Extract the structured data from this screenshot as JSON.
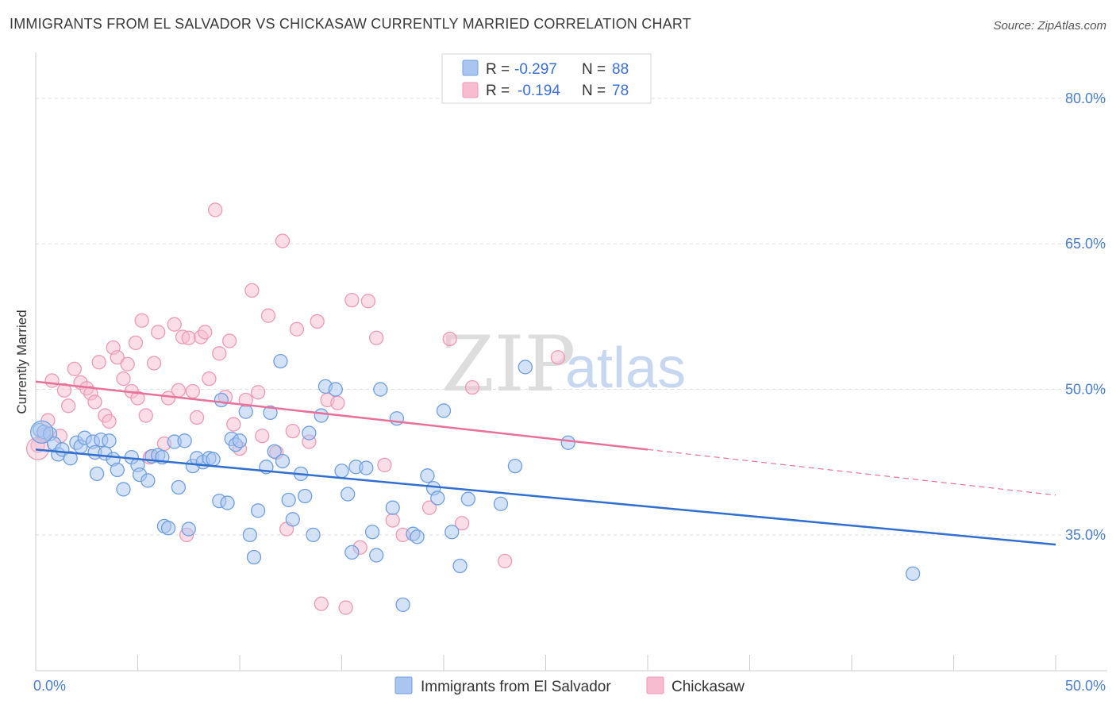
{
  "header": {
    "title": "IMMIGRANTS FROM EL SALVADOR VS CHICKASAW CURRENTLY MARRIED CORRELATION CHART",
    "source": "Source: ZipAtlas.com"
  },
  "watermark": {
    "zip": "ZIP",
    "atlas": "atlas"
  },
  "colors": {
    "blue_fill": "#a9c6f0",
    "blue_stroke": "#6f9fe0",
    "blue_line": "#2f6fd0",
    "pink_fill": "#f7bcd0",
    "pink_stroke": "#ec9ab6",
    "pink_line": "#e8709a",
    "grid": "#dddddd",
    "tick_text": "#4a7ec9"
  },
  "legend_top": {
    "rows": [
      {
        "r_label": "R =",
        "r_value": "-0.297",
        "n_label": "N =",
        "n_value": "88"
      },
      {
        "r_label": "R =",
        "r_value": "-0.194",
        "n_label": "N =",
        "n_value": "78"
      }
    ]
  },
  "legend_bottom": {
    "items": [
      "Immigrants from El Salvador",
      "Chickasaw"
    ]
  },
  "chart_data": {
    "type": "scatter",
    "xlabel": "",
    "ylabel": "Currently Married",
    "xlim": [
      0,
      50
    ],
    "ylim": [
      21,
      84
    ],
    "x_tick_labels": [
      {
        "value": 0,
        "label": "0.0%"
      },
      {
        "value": 50,
        "label": "50.0%"
      }
    ],
    "y_tick_labels": [
      {
        "value": 80,
        "label": "80.0%"
      },
      {
        "value": 65,
        "label": "65.0%"
      },
      {
        "value": 50,
        "label": "50.0%"
      },
      {
        "value": 35,
        "label": "35.0%"
      }
    ],
    "grid_y": [
      80,
      65,
      50,
      35
    ],
    "x_minor_ticks": [
      0,
      5,
      10,
      15,
      20,
      25,
      30,
      35,
      40,
      45,
      50
    ],
    "legend": "bottom-center",
    "series": [
      {
        "name": "Immigrants from El Salvador",
        "color": "blue",
        "trend": {
          "x": [
            0,
            50
          ],
          "y": [
            43.8,
            34.0
          ]
        },
        "points": [
          [
            0.2,
            45.8
          ],
          [
            0.4,
            45.6
          ],
          [
            0.7,
            45.4
          ],
          [
            0.9,
            44.4
          ],
          [
            1.1,
            43.3
          ],
          [
            1.3,
            43.8
          ],
          [
            1.7,
            42.9
          ],
          [
            2.0,
            44.5
          ],
          [
            2.2,
            44.1
          ],
          [
            2.4,
            45.0
          ],
          [
            2.8,
            44.6
          ],
          [
            2.9,
            43.5
          ],
          [
            3.0,
            41.3
          ],
          [
            3.2,
            44.8
          ],
          [
            3.4,
            43.4
          ],
          [
            3.6,
            44.7
          ],
          [
            3.8,
            42.8
          ],
          [
            4.0,
            41.7
          ],
          [
            4.3,
            39.7
          ],
          [
            4.7,
            43.0
          ],
          [
            5.0,
            42.2
          ],
          [
            5.1,
            41.2
          ],
          [
            5.5,
            40.6
          ],
          [
            5.7,
            43.1
          ],
          [
            6.0,
            43.2
          ],
          [
            6.2,
            43.0
          ],
          [
            6.3,
            35.9
          ],
          [
            6.5,
            35.7
          ],
          [
            6.8,
            44.6
          ],
          [
            7.0,
            39.9
          ],
          [
            7.3,
            44.7
          ],
          [
            7.5,
            35.6
          ],
          [
            7.7,
            42.1
          ],
          [
            7.9,
            42.9
          ],
          [
            8.2,
            42.5
          ],
          [
            8.5,
            42.9
          ],
          [
            8.7,
            42.8
          ],
          [
            9.0,
            38.5
          ],
          [
            9.1,
            48.9
          ],
          [
            9.4,
            38.3
          ],
          [
            9.6,
            44.9
          ],
          [
            9.8,
            44.3
          ],
          [
            10.0,
            44.7
          ],
          [
            10.3,
            47.7
          ],
          [
            10.5,
            35.0
          ],
          [
            10.7,
            32.7
          ],
          [
            10.9,
            37.5
          ],
          [
            11.3,
            42.0
          ],
          [
            11.5,
            47.6
          ],
          [
            11.7,
            43.6
          ],
          [
            12.0,
            52.9
          ],
          [
            12.1,
            42.6
          ],
          [
            12.4,
            38.6
          ],
          [
            12.6,
            36.6
          ],
          [
            13.0,
            41.3
          ],
          [
            13.2,
            39.0
          ],
          [
            13.4,
            45.5
          ],
          [
            13.6,
            35.0
          ],
          [
            14.0,
            47.3
          ],
          [
            14.2,
            50.3
          ],
          [
            14.7,
            50.0
          ],
          [
            15.0,
            41.6
          ],
          [
            15.3,
            39.2
          ],
          [
            15.5,
            33.2
          ],
          [
            15.7,
            42.0
          ],
          [
            16.2,
            41.9
          ],
          [
            16.5,
            35.3
          ],
          [
            16.7,
            32.9
          ],
          [
            16.9,
            50.0
          ],
          [
            17.5,
            37.8
          ],
          [
            17.7,
            47.0
          ],
          [
            18.0,
            27.8
          ],
          [
            18.5,
            35.1
          ],
          [
            18.7,
            34.8
          ],
          [
            19.2,
            41.1
          ],
          [
            19.5,
            39.8
          ],
          [
            19.7,
            38.8
          ],
          [
            20.0,
            47.8
          ],
          [
            20.4,
            35.3
          ],
          [
            20.8,
            31.8
          ],
          [
            21.2,
            38.7
          ],
          [
            22.8,
            38.2
          ],
          [
            23.5,
            42.1
          ],
          [
            24.0,
            52.3
          ],
          [
            26.1,
            44.5
          ],
          [
            43.0,
            31.0
          ]
        ]
      },
      {
        "name": "Chickasaw",
        "color": "pink",
        "trend": {
          "x": [
            0,
            30
          ],
          "y": [
            50.8,
            43.8
          ]
        },
        "trend_dashed": {
          "x": [
            30,
            50
          ],
          "y": [
            43.8,
            39.1
          ]
        },
        "points": [
          [
            0.1,
            44.2
          ],
          [
            0.4,
            45.3
          ],
          [
            0.6,
            46.8
          ],
          [
            0.8,
            50.9
          ],
          [
            1.2,
            45.2
          ],
          [
            1.4,
            49.9
          ],
          [
            1.6,
            48.3
          ],
          [
            1.9,
            52.1
          ],
          [
            2.2,
            50.7
          ],
          [
            2.5,
            50.1
          ],
          [
            2.7,
            49.6
          ],
          [
            2.9,
            48.7
          ],
          [
            3.1,
            52.8
          ],
          [
            3.4,
            47.3
          ],
          [
            3.6,
            46.7
          ],
          [
            3.8,
            54.3
          ],
          [
            4.0,
            53.3
          ],
          [
            4.3,
            51.1
          ],
          [
            4.5,
            52.6
          ],
          [
            4.7,
            49.8
          ],
          [
            4.9,
            54.8
          ],
          [
            5.0,
            49.1
          ],
          [
            5.2,
            57.1
          ],
          [
            5.4,
            47.3
          ],
          [
            5.6,
            43.0
          ],
          [
            5.8,
            52.7
          ],
          [
            6.0,
            55.9
          ],
          [
            6.3,
            44.4
          ],
          [
            6.5,
            49.1
          ],
          [
            6.8,
            56.7
          ],
          [
            7.0,
            49.9
          ],
          [
            7.2,
            55.4
          ],
          [
            7.5,
            55.3
          ],
          [
            7.7,
            49.8
          ],
          [
            7.9,
            47.1
          ],
          [
            8.1,
            55.4
          ],
          [
            8.3,
            55.9
          ],
          [
            8.5,
            51.1
          ],
          [
            8.8,
            68.5
          ],
          [
            9.0,
            53.7
          ],
          [
            9.3,
            49.2
          ],
          [
            9.5,
            55.0
          ],
          [
            9.7,
            46.4
          ],
          [
            10.0,
            43.9
          ],
          [
            10.3,
            48.9
          ],
          [
            10.6,
            60.2
          ],
          [
            10.9,
            49.7
          ],
          [
            11.1,
            45.2
          ],
          [
            11.4,
            57.6
          ],
          [
            11.8,
            43.5
          ],
          [
            12.1,
            65.3
          ],
          [
            12.3,
            35.6
          ],
          [
            12.6,
            45.7
          ],
          [
            12.8,
            56.2
          ],
          [
            13.4,
            44.6
          ],
          [
            13.8,
            57.0
          ],
          [
            14.0,
            27.9
          ],
          [
            14.3,
            48.9
          ],
          [
            14.8,
            48.6
          ],
          [
            15.2,
            27.5
          ],
          [
            15.5,
            59.2
          ],
          [
            15.9,
            33.7
          ],
          [
            16.3,
            59.1
          ],
          [
            16.7,
            55.3
          ],
          [
            17.1,
            42.2
          ],
          [
            17.5,
            36.5
          ],
          [
            18.0,
            35.0
          ],
          [
            19.3,
            37.8
          ],
          [
            20.3,
            55.2
          ],
          [
            20.9,
            36.2
          ],
          [
            21.4,
            50.2
          ],
          [
            23.0,
            32.3
          ],
          [
            25.6,
            53.3
          ],
          [
            7.4,
            35.0
          ]
        ]
      }
    ]
  }
}
